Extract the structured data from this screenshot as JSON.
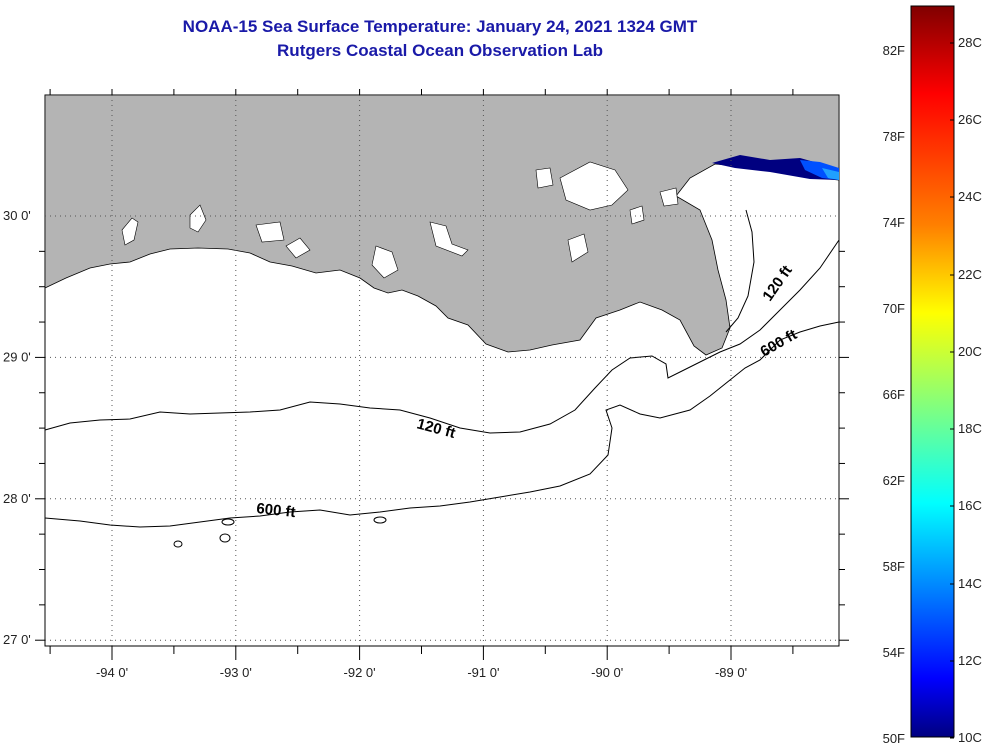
{
  "title": {
    "line1": "NOAA-15 Sea Surface Temperature:  January 24, 2021 1324 GMT",
    "line2": "Rutgers Coastal Ocean Observation Lab"
  },
  "map": {
    "lon_range": [
      -94.5,
      -88.3
    ],
    "lat_range": [
      26.95,
      29.85
    ],
    "x_ticks": [
      {
        "value": -94,
        "label": "-94 0'"
      },
      {
        "value": -93,
        "label": "-93 0'"
      },
      {
        "value": -92,
        "label": "-92 0'"
      },
      {
        "value": -91,
        "label": "-91 0'"
      },
      {
        "value": -90,
        "label": "-90 0'"
      },
      {
        "value": -89,
        "label": "-89 0'"
      }
    ],
    "y_ticks": [
      {
        "value": 30,
        "label": "30 0'"
      },
      {
        "value": 29,
        "label": "29 0'"
      },
      {
        "value": 28,
        "label": "28 0'"
      },
      {
        "value": 27,
        "label": "27 0'"
      }
    ],
    "contours": [
      {
        "label": "120 ft"
      },
      {
        "label": "600 ft"
      },
      {
        "label": "120 ft"
      },
      {
        "label": "600 ft"
      }
    ],
    "colors": {
      "land": "#b4b4b4",
      "water": "#ffffff",
      "grid": "#555555"
    }
  },
  "colorbar": {
    "fahrenheit": [
      "82F",
      "78F",
      "74F",
      "70F",
      "66F",
      "62F",
      "58F",
      "54F",
      "50F"
    ],
    "celsius": [
      "28C",
      "26C",
      "24C",
      "22C",
      "20C",
      "18C",
      "16C",
      "14C",
      "12C",
      "10C"
    ],
    "gradient": [
      "#800000",
      "#ff0000",
      "#ff8000",
      "#ffff00",
      "#80ff80",
      "#00ffff",
      "#0080ff",
      "#0000ff",
      "#000080"
    ]
  }
}
